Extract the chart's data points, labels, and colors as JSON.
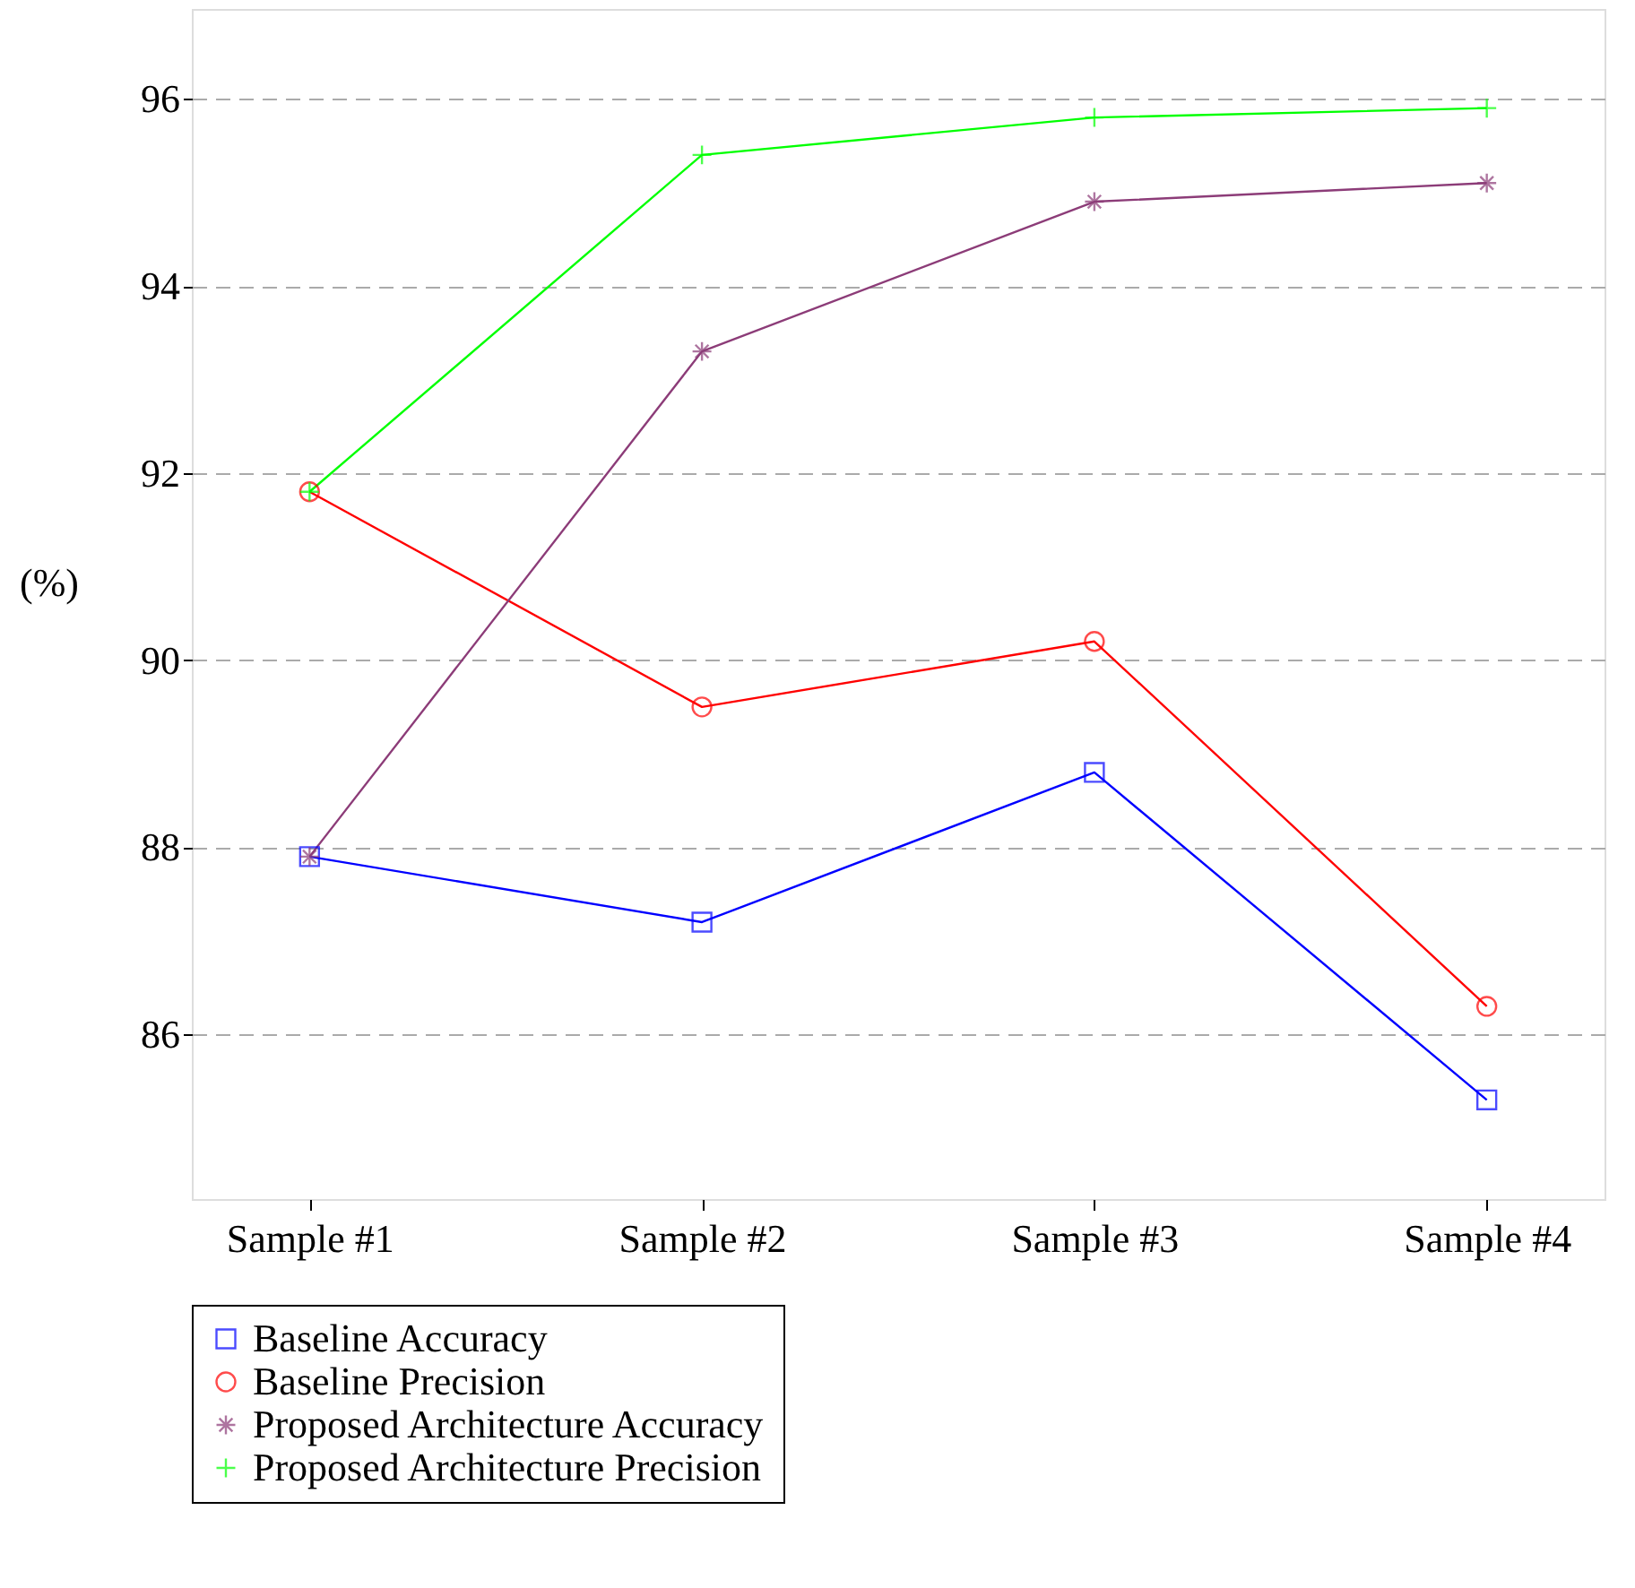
{
  "chart_data": {
    "type": "line",
    "ylabel": "(%)",
    "categories": [
      "Sample #1",
      "Sample #2",
      "Sample #3",
      "Sample #4"
    ],
    "series": [
      {
        "name": "Baseline Accuracy",
        "color": "#0000ff",
        "marker": "square",
        "values": [
          87.9,
          87.2,
          88.8,
          85.3
        ]
      },
      {
        "name": "Baseline Precision",
        "color": "#ff0000",
        "marker": "circle",
        "values": [
          91.8,
          89.5,
          90.2,
          86.3
        ]
      },
      {
        "name": "Proposed Architecture Accuracy",
        "color": "#8c3c78",
        "marker": "cross",
        "values": [
          87.9,
          93.3,
          94.9,
          95.1
        ]
      },
      {
        "name": "Proposed Architecture Precision",
        "color": "#00ff00",
        "marker": "cross",
        "values": [
          91.8,
          95.4,
          95.8,
          95.9
        ]
      }
    ],
    "ylim": [
      84.24,
      96.96
    ],
    "yticks": [
      86,
      88,
      90,
      92,
      94,
      96
    ],
    "grid": "y",
    "legend": "bottom",
    "line_style": "solid"
  }
}
